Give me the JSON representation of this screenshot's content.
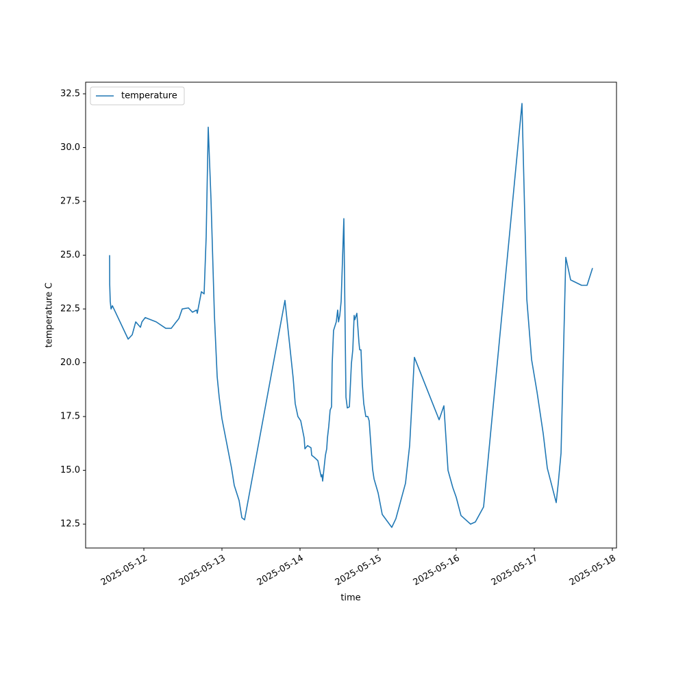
{
  "chart_data": {
    "type": "line",
    "xlabel": "time",
    "ylabel": "temperature C",
    "legend": "upper left",
    "xlim": [
      "2025-05-11T06:06",
      "2025-05-18T01:16"
    ],
    "xticks": [
      "2025-05-12",
      "2025-05-13",
      "2025-05-14",
      "2025-05-15",
      "2025-05-16",
      "2025-05-17",
      "2025-05-18"
    ],
    "ylim": [
      11.39,
      33.04
    ],
    "yticks": [
      12.5,
      {
        "value": 15,
        "label": "15.0"
      },
      17.5,
      {
        "value": 20,
        "label": "20.0"
      },
      22.5,
      {
        "value": 25,
        "label": "25.0"
      },
      27.5,
      {
        "value": 30,
        "label": "30.0"
      },
      32.5
    ],
    "x": [
      "2025-05-11T13:28",
      "2025-05-11T13:30",
      "2025-05-11T13:40",
      "2025-05-11T13:55",
      "2025-05-11T14:20",
      "2025-05-11T19:10",
      "2025-05-11T20:25",
      "2025-05-11T21:30",
      "2025-05-11T22:57",
      "2025-05-11T23:25",
      "2025-05-12T00:25",
      "2025-05-12T03:47",
      "2025-05-12T06:44",
      "2025-05-12T08:25",
      "2025-05-12T09:41",
      "2025-05-12T10:45",
      "2025-05-12T11:47",
      "2025-05-12T13:41",
      "2025-05-12T14:57",
      "2025-05-12T16:12",
      "2025-05-12T16:25",
      "2025-05-12T17:41",
      "2025-05-12T18:31",
      "2025-05-12T19:09",
      "2025-05-12T19:47",
      "2025-05-12T20:38",
      "2025-05-12T21:41",
      "2025-05-12T22:32",
      "2025-05-12T23:09",
      "2025-05-13T00:00",
      "2025-05-13T02:57",
      "2025-05-13T03:47",
      "2025-05-13T05:16",
      "2025-05-13T06:07",
      "2025-05-13T06:57",
      "2025-05-13T19:22",
      "2025-05-13T21:53",
      "2025-05-13T22:31",
      "2025-05-13T23:21",
      "2025-05-14T00:13",
      "2025-05-14T01:16",
      "2025-05-14T01:30",
      "2025-05-14T02:19",
      "2025-05-14T03:22",
      "2025-05-14T03:35",
      "2025-05-14T04:25",
      "2025-05-14T05:29",
      "2025-05-14T06:00",
      "2025-05-14T06:30",
      "2025-05-14T06:44",
      "2025-05-14T06:57",
      "2025-05-14T07:48",
      "2025-05-14T08:12",
      "2025-05-14T08:25",
      "2025-05-14T08:50",
      "2025-05-14T09:15",
      "2025-05-14T09:41",
      "2025-05-14T09:53",
      "2025-05-14T10:18",
      "2025-05-14T11:08",
      "2025-05-14T11:34",
      "2025-05-14T11:50",
      "2025-05-14T12:13",
      "2025-05-14T12:38",
      "2025-05-14T13:28",
      "2025-05-14T14:07",
      "2025-05-14T14:32",
      "2025-05-14T15:10",
      "2025-05-14T15:47",
      "2025-05-14T16:13",
      "2025-05-14T16:38",
      "2025-05-14T16:50",
      "2025-05-14T17:28",
      "2025-05-14T18:06",
      "2025-05-14T18:20",
      "2025-05-14T18:44",
      "2025-05-14T19:09",
      "2025-05-14T19:35",
      "2025-05-14T20:13",
      "2025-05-14T20:50",
      "2025-05-14T21:15",
      "2025-05-14T22:18",
      "2025-05-14T22:45",
      "2025-05-15T00:00",
      "2025-05-15T01:16",
      "2025-05-15T04:12",
      "2025-05-15T05:27",
      "2025-05-15T08:25",
      "2025-05-15T09:41",
      "2025-05-15T11:09",
      "2025-05-15T18:45",
      "2025-05-15T20:13",
      "2025-05-15T21:29",
      "2025-05-15T22:57",
      "2025-05-16T00:00",
      "2025-05-16T01:28",
      "2025-05-16T04:25",
      "2025-05-16T05:53",
      "2025-05-16T08:25",
      "2025-05-16T20:13",
      "2025-05-16T21:42",
      "2025-05-16T23:10",
      "2025-05-17T00:50",
      "2025-05-17T02:45",
      "2025-05-17T04:00",
      "2025-05-17T06:44",
      "2025-05-17T07:22",
      "2025-05-17T08:13",
      "2025-05-17T09:41",
      "2025-05-17T11:10",
      "2025-05-17T14:32",
      "2025-05-17T16:13",
      "2025-05-17T17:54"
    ],
    "series": [
      {
        "name": "temperature",
        "color": "#1f77b4",
        "values": [
          25.0,
          23.65,
          22.85,
          22.5,
          22.65,
          21.1,
          21.3,
          21.9,
          21.65,
          21.9,
          22.1,
          21.9,
          21.6,
          21.6,
          21.85,
          22.05,
          22.5,
          22.55,
          22.35,
          22.45,
          22.3,
          23.3,
          23.2,
          25.85,
          30.95,
          27.6,
          22.2,
          19.35,
          18.4,
          17.4,
          15.1,
          14.3,
          13.6,
          12.8,
          12.7,
          22.9,
          19.3,
          18.1,
          17.5,
          17.3,
          16.5,
          16.0,
          16.15,
          16.05,
          15.7,
          15.6,
          15.45,
          15.05,
          14.7,
          14.8,
          14.5,
          15.7,
          16.0,
          16.5,
          17.05,
          17.8,
          17.95,
          19.95,
          21.5,
          21.9,
          22.45,
          21.9,
          22.2,
          22.85,
          26.7,
          18.4,
          17.9,
          17.95,
          19.95,
          20.6,
          22.2,
          22.0,
          22.3,
          20.95,
          20.6,
          20.6,
          19.0,
          18.1,
          17.5,
          17.5,
          17.3,
          15.05,
          14.6,
          13.95,
          12.95,
          12.35,
          12.75,
          14.4,
          16.15,
          20.25,
          17.35,
          18.0,
          15.0,
          14.2,
          13.75,
          12.9,
          12.5,
          12.6,
          13.3,
          32.05,
          22.95,
          20.15,
          18.65,
          16.7,
          15.1,
          13.5,
          14.4,
          15.8,
          24.9,
          23.85,
          23.6,
          23.6,
          24.4
        ]
      }
    ]
  }
}
